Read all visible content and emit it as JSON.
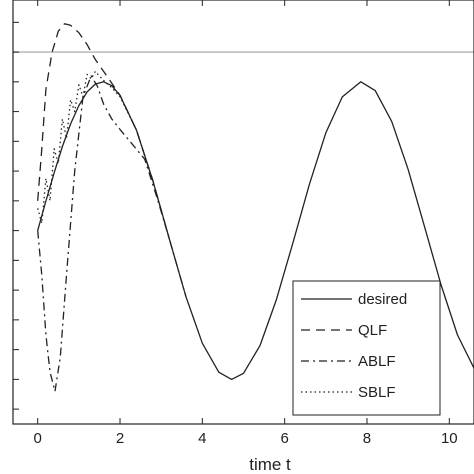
{
  "chart_data": {
    "type": "line",
    "xlabel": "time t",
    "ylabel": "",
    "xlim": [
      -0.6,
      10.6
    ],
    "ylim": [
      -1.3,
      1.55
    ],
    "xticks": [
      0,
      2,
      4,
      6,
      8,
      10
    ],
    "constraint_line": {
      "y": 1.2
    },
    "grid": false,
    "legend_position": "bottom-right",
    "series": [
      {
        "name": "desired",
        "dash": "",
        "x": [
          0,
          0.2,
          0.4,
          0.6,
          0.8,
          1.0,
          1.2,
          1.4,
          1.6,
          1.8,
          2.0,
          2.4,
          2.8,
          3.2,
          3.6,
          4.0,
          4.4,
          4.71,
          5.0,
          5.4,
          5.8,
          6.2,
          6.6,
          7.0,
          7.4,
          7.85,
          8.2,
          8.6,
          9.0,
          9.4,
          9.8,
          10.2,
          10.6
        ],
        "y": [
          0,
          0.199,
          0.389,
          0.565,
          0.717,
          0.841,
          0.932,
          0.985,
          1.0,
          0.974,
          0.909,
          0.675,
          0.335,
          -0.058,
          -0.443,
          -0.757,
          -0.952,
          -1.0,
          -0.959,
          -0.773,
          -0.464,
          -0.083,
          0.311,
          0.657,
          0.899,
          1.0,
          0.941,
          0.734,
          0.412,
          0.025,
          -0.366,
          -0.702,
          -0.925
        ]
      },
      {
        "name": "QLF",
        "dash": "9,6",
        "x": [
          0,
          0.1,
          0.2,
          0.35,
          0.5,
          0.65,
          0.8,
          1.0,
          1.2,
          1.4,
          1.6,
          1.8,
          2.0,
          2.4,
          2.8,
          3.2
        ],
        "y": [
          0.2,
          0.55,
          0.95,
          1.2,
          1.34,
          1.39,
          1.38,
          1.33,
          1.25,
          1.15,
          1.07,
          0.99,
          0.91,
          0.675,
          0.335,
          -0.058
        ]
      },
      {
        "name": "ABLF",
        "dash": "8,4,2,4",
        "x": [
          0,
          0.1,
          0.2,
          0.3,
          0.42,
          0.55,
          0.7,
          0.9,
          1.1,
          1.3,
          1.45,
          1.6,
          1.8,
          2.0,
          2.3,
          2.6,
          2.9,
          3.2,
          3.6
        ],
        "y": [
          0,
          -0.3,
          -0.7,
          -0.95,
          -1.08,
          -0.85,
          -0.3,
          0.4,
          0.9,
          1.04,
          0.97,
          0.85,
          0.75,
          0.68,
          0.58,
          0.48,
          0.22,
          -0.058,
          -0.443
        ]
      },
      {
        "name": "SBLF",
        "dash": "1.5,3",
        "x": [
          0,
          0.1,
          0.2,
          0.3,
          0.4,
          0.5,
          0.6,
          0.7,
          0.8,
          0.9,
          1.0,
          1.1,
          1.2,
          1.3,
          1.4,
          1.5,
          1.6,
          1.8,
          2.0,
          2.4,
          2.8
        ],
        "y": [
          0.15,
          0.05,
          0.35,
          0.2,
          0.55,
          0.45,
          0.75,
          0.62,
          0.88,
          0.8,
          0.98,
          0.9,
          1.05,
          1.02,
          1.07,
          1.04,
          1.01,
          0.96,
          0.9,
          0.675,
          0.335
        ]
      }
    ]
  }
}
